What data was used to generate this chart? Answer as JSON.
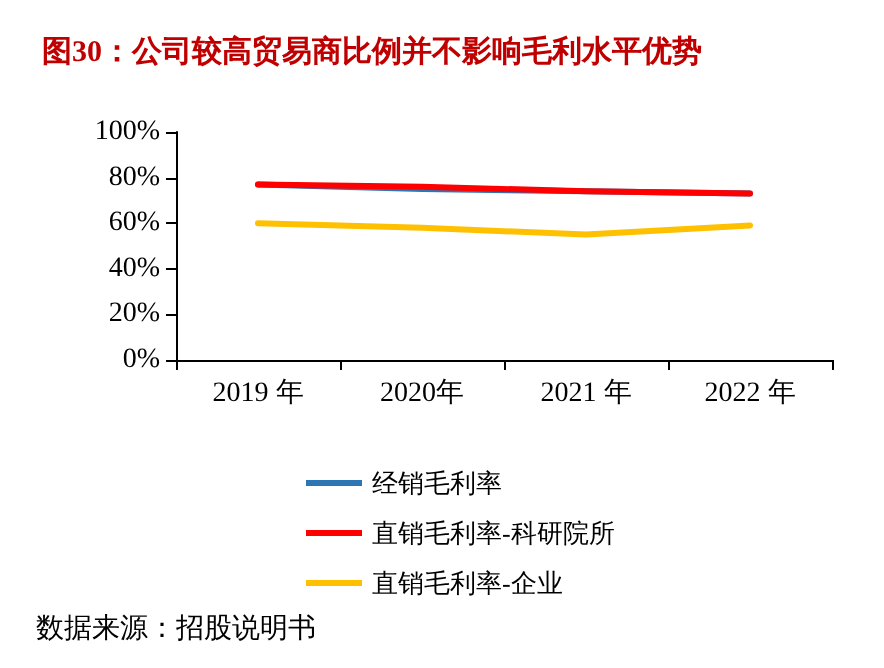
{
  "chart_data": {
    "type": "line",
    "title": "图30：公司较高贸易商比例并不影响毛利水平优势",
    "categories": [
      "2019 年",
      "2020年",
      "2021 年",
      "2022 年"
    ],
    "series": [
      {
        "name": "经销毛利率",
        "color": "#2e75b6",
        "values": [
          77,
          75,
          74,
          73
        ]
      },
      {
        "name": "直销毛利率-科研院所",
        "color": "#ff0000",
        "values": [
          77,
          76,
          74,
          73
        ]
      },
      {
        "name": "直销毛利率-企业",
        "color": "#ffc000",
        "values": [
          60,
          58,
          55,
          59
        ]
      }
    ],
    "ylim": [
      0,
      100
    ],
    "yticks": [
      {
        "value": 0,
        "label": "0%"
      },
      {
        "value": 20,
        "label": "20%"
      },
      {
        "value": 40,
        "label": "40%"
      },
      {
        "value": 60,
        "label": "60%"
      },
      {
        "value": 80,
        "label": "80%"
      },
      {
        "value": 100,
        "label": "100%"
      }
    ],
    "grid": false,
    "legend": "bottom",
    "marker": "none",
    "line_style": "solid",
    "annotations": [
      "数据来源：招股说明书"
    ]
  }
}
